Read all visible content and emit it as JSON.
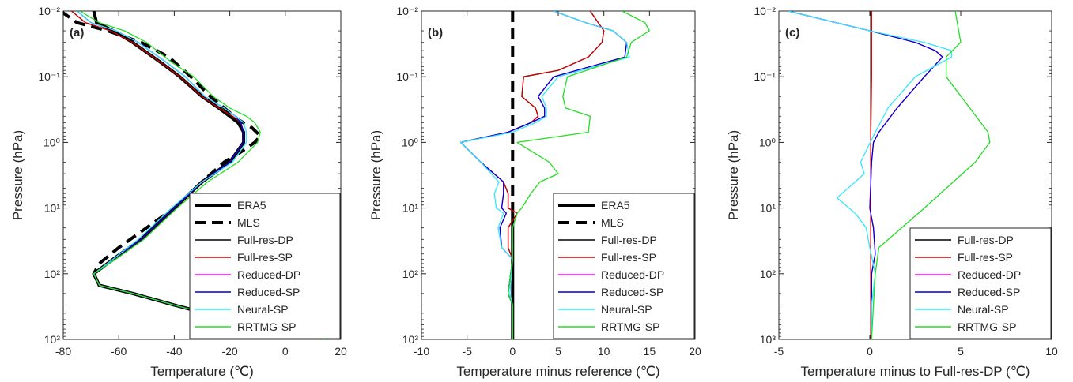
{
  "figure": {
    "colors": {
      "ERA5": "#000000",
      "MLS": "#000000",
      "Full-res-DP": "#000000",
      "Full-res-SP": "#cc0000",
      "Reduced-DP": "#ff00ff",
      "Reduced-SP": "#0000cc",
      "Neural-SP": "#33e6ff",
      "RRTMG-SP": "#22dd22"
    }
  },
  "chart_data": [
    {
      "type": "line",
      "panel_label": "(a)",
      "xlabel": "Temperature (℃)",
      "ylabel": "Pressure (hPa)",
      "xlim": [
        -80,
        20
      ],
      "xticks": [
        -80,
        -60,
        -40,
        -20,
        0,
        20
      ],
      "ylim": [
        0.01,
        1000
      ],
      "yscale": "log",
      "yreversed": true,
      "yticks": [
        "10⁻²",
        "10⁻¹",
        "10⁰",
        "10¹",
        "10²",
        "10³"
      ],
      "ytick_values": [
        0.01,
        0.1,
        1,
        10,
        100,
        1000
      ],
      "legend": [
        "ERA5",
        "MLS",
        "Full-res-DP",
        "Full-res-SP",
        "Reduced-DP",
        "Reduced-SP",
        "Neural-SP",
        "RRTMG-SP"
      ],
      "legend_position": "lower-right",
      "series": [
        {
          "name": "ERA5",
          "style": "thick",
          "x": [
            -69,
            -68,
            -62,
            -55,
            -45,
            -38,
            -30,
            -24,
            -20,
            -17,
            -15,
            -15,
            -20,
            -30,
            -40,
            -52,
            -62,
            -69,
            -67,
            -55,
            -40,
            -20,
            0,
            15
          ],
          "y": [
            0.01,
            0.015,
            0.02,
            0.03,
            0.06,
            0.1,
            0.2,
            0.3,
            0.4,
            0.5,
            0.7,
            1,
            2,
            4,
            10,
            30,
            60,
            100,
            150,
            200,
            300,
            500,
            700,
            1000
          ]
        },
        {
          "name": "MLS",
          "style": "dashed",
          "x": [
            -81,
            -75,
            -64,
            -52,
            -42,
            -34,
            -27,
            -22,
            -17,
            -12,
            -9,
            -11,
            -16,
            -22,
            -30,
            -40,
            -50,
            -60,
            -67,
            -69,
            -67,
            -55,
            -40,
            -20,
            0,
            15
          ],
          "y": [
            0.01,
            0.015,
            0.02,
            0.03,
            0.05,
            0.1,
            0.2,
            0.3,
            0.45,
            0.6,
            0.8,
            1,
            1.4,
            2,
            4,
            10,
            20,
            40,
            70,
            100,
            150,
            200,
            300,
            500,
            700,
            1000
          ]
        },
        {
          "name": "Full-res-DP",
          "x": [
            -77,
            -72,
            -63,
            -55,
            -45,
            -38,
            -30,
            -24,
            -19,
            -16,
            -15,
            -15,
            -20,
            -30,
            -40,
            -52,
            -62,
            -69,
            -67,
            -55,
            -40,
            -20,
            0,
            15
          ],
          "y": [
            0.01,
            0.015,
            0.02,
            0.03,
            0.06,
            0.1,
            0.2,
            0.3,
            0.4,
            0.5,
            0.7,
            1,
            2,
            4,
            10,
            30,
            60,
            100,
            150,
            200,
            300,
            500,
            700,
            1000
          ]
        },
        {
          "name": "Full-res-SP",
          "x": [
            -77,
            -72,
            -63,
            -55,
            -45,
            -38,
            -30,
            -24,
            -19,
            -16,
            -15,
            -15,
            -20,
            -30,
            -40,
            -52,
            -62,
            -69,
            -67,
            -55,
            -40,
            -20,
            0,
            15
          ],
          "y": [
            0.01,
            0.015,
            0.02,
            0.03,
            0.06,
            0.1,
            0.2,
            0.3,
            0.4,
            0.5,
            0.7,
            1,
            2,
            4,
            10,
            30,
            60,
            100,
            150,
            200,
            300,
            500,
            700,
            1000
          ]
        },
        {
          "name": "Reduced-DP",
          "x": [
            -75,
            -70,
            -61,
            -53,
            -43,
            -36,
            -29,
            -22,
            -18,
            -16,
            -15,
            -15,
            -20,
            -30,
            -40,
            -52,
            -62,
            -69,
            -67,
            -55,
            -40,
            -20,
            0,
            15
          ],
          "y": [
            0.01,
            0.015,
            0.02,
            0.03,
            0.06,
            0.1,
            0.2,
            0.3,
            0.4,
            0.5,
            0.7,
            1,
            2,
            4,
            10,
            30,
            60,
            100,
            150,
            200,
            300,
            500,
            700,
            1000
          ]
        },
        {
          "name": "Reduced-SP",
          "x": [
            -75,
            -70,
            -61,
            -53,
            -43,
            -36,
            -29,
            -22,
            -18,
            -16,
            -15,
            -15,
            -20,
            -30,
            -40,
            -52,
            -62,
            -69,
            -67,
            -55,
            -40,
            -20,
            0,
            15
          ],
          "y": [
            0.01,
            0.015,
            0.02,
            0.03,
            0.06,
            0.1,
            0.2,
            0.3,
            0.4,
            0.5,
            0.7,
            1,
            2,
            4,
            10,
            30,
            60,
            100,
            150,
            200,
            300,
            500,
            700,
            1000
          ]
        },
        {
          "name": "Neural-SP",
          "x": [
            -75,
            -70,
            -61,
            -53,
            -43,
            -36,
            -29,
            -22,
            -18,
            -15,
            -14,
            -14,
            -19,
            -30,
            -41,
            -53,
            -62,
            -69,
            -67,
            -55,
            -40,
            -20,
            0,
            15
          ],
          "y": [
            0.01,
            0.015,
            0.02,
            0.03,
            0.06,
            0.1,
            0.2,
            0.3,
            0.4,
            0.5,
            0.7,
            1,
            2,
            4,
            10,
            30,
            60,
            100,
            150,
            200,
            300,
            500,
            700,
            1000
          ]
        },
        {
          "name": "RRTMG-SP",
          "x": [
            -74,
            -67,
            -58,
            -50,
            -41,
            -33,
            -26,
            -20,
            -14,
            -11,
            -9,
            -10,
            -17,
            -28,
            -39,
            -51,
            -61,
            -69,
            -67,
            -55,
            -40,
            -20,
            0,
            15
          ],
          "y": [
            0.01,
            0.015,
            0.02,
            0.03,
            0.06,
            0.1,
            0.2,
            0.3,
            0.4,
            0.5,
            0.7,
            1,
            2,
            4,
            10,
            30,
            60,
            100,
            150,
            200,
            300,
            500,
            700,
            1000
          ]
        }
      ]
    },
    {
      "type": "line",
      "panel_label": "(b)",
      "xlabel": "Temperature minus reference (℃)",
      "ylabel": "Pressure (hPa)",
      "xlim": [
        -10,
        20
      ],
      "xticks": [
        -10,
        -5,
        0,
        5,
        10,
        15,
        20
      ],
      "ylim": [
        0.01,
        1000
      ],
      "yscale": "log",
      "yreversed": true,
      "yticks": [
        "10⁻²",
        "10⁻¹",
        "10⁰",
        "10¹",
        "10²",
        "10³"
      ],
      "ytick_values": [
        0.01,
        0.1,
        1,
        10,
        100,
        1000
      ],
      "legend": [
        "ERA5",
        "MLS",
        "Full-res-DP",
        "Full-res-SP",
        "Reduced-DP",
        "Reduced-SP",
        "Neural-SP",
        "RRTMG-SP"
      ],
      "legend_position": "lower-right",
      "series": [
        {
          "name": "ERA5",
          "style": "thick",
          "x": [
            0,
            0
          ],
          "y": [
            10,
            1000
          ]
        },
        {
          "name": "MLS",
          "style": "dashed",
          "x": [
            0,
            0
          ],
          "y": [
            0.01,
            10
          ]
        },
        {
          "name": "Full-res-DP",
          "x": [
            8.5,
            10,
            9.8,
            8.3,
            5,
            1.2,
            1,
            2.5,
            2.8,
            2,
            -0.5,
            -5.7,
            -3.5,
            -1,
            -0.5,
            -0.5,
            0.5,
            -0.5,
            -0.5,
            0,
            -0.5,
            0,
            0,
            0
          ],
          "y": [
            0.01,
            0.02,
            0.03,
            0.05,
            0.08,
            0.1,
            0.2,
            0.3,
            0.4,
            0.5,
            0.7,
            1,
            2,
            4,
            6,
            10,
            12,
            20,
            40,
            60,
            200,
            300,
            600,
            1000
          ]
        },
        {
          "name": "Full-res-SP",
          "x": [
            8.5,
            10,
            9.8,
            8.3,
            5,
            1.2,
            1,
            2.5,
            2.8,
            2,
            -0.5,
            -5.7,
            -3.5,
            -1,
            -0.5,
            -0.5,
            0.5,
            -0.5,
            -0.5,
            0,
            -0.5,
            0,
            0,
            0
          ],
          "y": [
            0.01,
            0.02,
            0.03,
            0.05,
            0.08,
            0.1,
            0.2,
            0.3,
            0.4,
            0.5,
            0.7,
            1,
            2,
            4,
            6,
            10,
            12,
            20,
            40,
            60,
            200,
            300,
            600,
            1000
          ]
        },
        {
          "name": "Reduced-DP",
          "x": [
            4.5,
            8,
            11,
            12.5,
            12.3,
            4.5,
            2.8,
            3.5,
            3.5,
            2,
            -0.5,
            -5.7,
            -3.5,
            -1,
            -1,
            -1.2,
            -0.7,
            -1.4,
            -1.2,
            0,
            -0.5,
            0,
            0,
            0
          ],
          "y": [
            0.01,
            0.015,
            0.02,
            0.03,
            0.05,
            0.1,
            0.2,
            0.3,
            0.4,
            0.5,
            0.7,
            1,
            2,
            4,
            6,
            10,
            12,
            20,
            40,
            60,
            200,
            300,
            600,
            1000
          ]
        },
        {
          "name": "Reduced-SP",
          "x": [
            4.5,
            8,
            11,
            12.5,
            12.3,
            4.5,
            2.8,
            3.5,
            3.5,
            2,
            -0.5,
            -5.7,
            -3.5,
            -1,
            -1,
            -1.2,
            -0.7,
            -1.4,
            -1.2,
            0,
            -0.5,
            0,
            0,
            0
          ],
          "y": [
            0.01,
            0.015,
            0.02,
            0.03,
            0.05,
            0.1,
            0.2,
            0.3,
            0.4,
            0.5,
            0.7,
            1,
            2,
            4,
            6,
            10,
            12,
            20,
            40,
            60,
            200,
            300,
            600,
            1000
          ]
        },
        {
          "name": "Neural-SP",
          "x": [
            4.5,
            8,
            11,
            12.5,
            12.8,
            5,
            3.2,
            3.7,
            3.7,
            2.5,
            0,
            -5.7,
            -3.5,
            -1.5,
            -2,
            -1.8,
            -1,
            -1.6,
            -1.2,
            0,
            -0.3,
            0,
            0,
            0
          ],
          "y": [
            0.01,
            0.015,
            0.02,
            0.03,
            0.05,
            0.1,
            0.2,
            0.3,
            0.4,
            0.5,
            0.7,
            1,
            2,
            4,
            6,
            10,
            12,
            20,
            40,
            60,
            200,
            300,
            600,
            1000
          ]
        },
        {
          "name": "RRTMG-SP",
          "x": [
            12,
            14.5,
            15,
            13,
            12.5,
            6,
            5.5,
            5.8,
            8.5,
            8.3,
            0.5,
            4,
            5,
            3,
            2,
            1,
            0.5,
            0,
            0,
            0,
            -0.5,
            0,
            0,
            0
          ],
          "y": [
            0.01,
            0.015,
            0.02,
            0.03,
            0.05,
            0.1,
            0.2,
            0.3,
            0.4,
            0.7,
            1,
            2,
            3,
            4,
            6,
            10,
            12,
            20,
            40,
            60,
            200,
            300,
            600,
            1000
          ]
        }
      ]
    },
    {
      "type": "line",
      "panel_label": "(c)",
      "xlabel": "Temperature minus to Full-res-DP (℃)",
      "ylabel": "Pressure (hPa)",
      "xlim": [
        -5,
        10
      ],
      "xticks": [
        -5,
        0,
        5,
        10
      ],
      "ylim": [
        0.01,
        1000
      ],
      "yscale": "log",
      "yreversed": true,
      "yticks": [
        "10⁻²",
        "10⁻¹",
        "10⁰",
        "10¹",
        "10²",
        "10³"
      ],
      "ytick_values": [
        0.01,
        0.1,
        1,
        10,
        100,
        1000
      ],
      "legend": [
        "Full-res-DP",
        "Full-res-SP",
        "Reduced-DP",
        "Reduced-SP",
        "Neural-SP",
        "RRTMG-SP"
      ],
      "legend_position": "lower-right",
      "series": [
        {
          "name": "Full-res-DP",
          "x": [
            0.05,
            0.05
          ],
          "y": [
            0.01,
            1000
          ]
        },
        {
          "name": "Full-res-SP",
          "x": [
            0.1,
            0.1,
            0.05,
            0.05,
            0.05
          ],
          "y": [
            0.01,
            0.1,
            1,
            100,
            1000
          ]
        },
        {
          "name": "Reduced-DP",
          "x": [
            -4.5,
            0,
            2.5,
            3.6,
            4,
            3,
            1.5,
            0.5,
            0.2,
            0.1,
            0,
            0.2,
            0.3,
            0.1,
            0.1,
            0.1
          ],
          "y": [
            0.01,
            0.02,
            0.03,
            0.04,
            0.05,
            0.1,
            0.3,
            0.7,
            1,
            2,
            10,
            20,
            50,
            100,
            300,
            1000
          ]
        },
        {
          "name": "Reduced-SP",
          "x": [
            -4.5,
            0,
            2.5,
            3.6,
            4,
            3,
            1.5,
            0.5,
            0.2,
            0.1,
            0,
            0.2,
            0.3,
            0.1,
            0.1,
            0.1
          ],
          "y": [
            0.01,
            0.02,
            0.03,
            0.04,
            0.05,
            0.1,
            0.3,
            0.7,
            1,
            2,
            10,
            20,
            50,
            100,
            300,
            1000
          ]
        },
        {
          "name": "Neural-SP",
          "x": [
            -4.5,
            0,
            3,
            4.5,
            4.5,
            2.5,
            1,
            0.3,
            -0.5,
            -0.3,
            -1.8,
            -0.8,
            -0.2,
            0,
            0.3,
            0.1,
            0.1
          ],
          "y": [
            0.01,
            0.02,
            0.03,
            0.04,
            0.05,
            0.1,
            0.3,
            0.7,
            2,
            3,
            7,
            12,
            20,
            40,
            100,
            300,
            1000
          ]
        },
        {
          "name": "RRTMG-SP",
          "x": [
            4.7,
            5,
            4.2,
            4.2,
            5.5,
            6.5,
            6.6,
            5.8,
            3,
            0.5,
            0.3,
            0.2,
            0.1
          ],
          "y": [
            0.01,
            0.03,
            0.05,
            0.1,
            0.3,
            0.7,
            1,
            2,
            10,
            40,
            100,
            300,
            1000
          ]
        }
      ]
    }
  ]
}
